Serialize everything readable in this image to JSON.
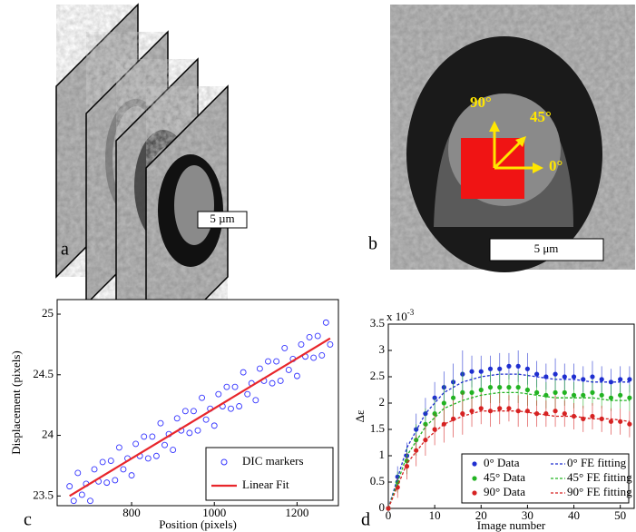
{
  "panels": {
    "a": {
      "label": "a",
      "scale_bar": "5 µm"
    },
    "b": {
      "label": "b",
      "scale_bar": "5 μm",
      "directions": [
        "90°",
        "45°",
        "0°"
      ]
    }
  },
  "chart_data": [
    {
      "type": "scatter",
      "panel_label": "c",
      "x_label": "Position (pixels)",
      "y_label": "Displacement (pixels)",
      "xlim": [
        620,
        1300
      ],
      "xticks": [
        800,
        1000,
        1200
      ],
      "ylim": [
        23.42,
        25.12
      ],
      "yticks": [
        23.5,
        24,
        24.5,
        25
      ],
      "legend": "lower right",
      "series": [
        {
          "name": "DIC markers",
          "color": "#3333ff",
          "mode": "markers",
          "x": [
            650,
            660,
            670,
            680,
            690,
            700,
            710,
            720,
            730,
            740,
            750,
            760,
            770,
            780,
            790,
            800,
            810,
            820,
            830,
            840,
            850,
            860,
            870,
            880,
            890,
            900,
            910,
            920,
            930,
            940,
            950,
            960,
            970,
            980,
            990,
            1000,
            1010,
            1020,
            1030,
            1040,
            1050,
            1060,
            1070,
            1080,
            1090,
            1100,
            1110,
            1120,
            1130,
            1140,
            1150,
            1160,
            1170,
            1180,
            1190,
            1200,
            1210,
            1220,
            1230,
            1240,
            1250,
            1260,
            1270,
            1280
          ],
          "values": [
            23.58,
            23.46,
            23.69,
            23.51,
            23.6,
            23.46,
            23.72,
            23.62,
            23.78,
            23.61,
            23.79,
            23.63,
            23.9,
            23.72,
            23.81,
            23.67,
            23.93,
            23.83,
            23.99,
            23.81,
            23.99,
            23.83,
            24.1,
            23.92,
            24.01,
            23.88,
            24.14,
            24.04,
            24.2,
            24.02,
            24.2,
            24.04,
            24.31,
            24.13,
            24.22,
            24.08,
            24.34,
            24.24,
            24.4,
            24.22,
            24.4,
            24.24,
            24.52,
            24.34,
            24.43,
            24.29,
            24.55,
            24.45,
            24.61,
            24.43,
            24.61,
            24.45,
            24.72,
            24.54,
            24.63,
            24.49,
            24.75,
            24.65,
            24.81,
            24.64,
            24.82,
            24.66,
            24.93,
            24.75
          ]
        },
        {
          "name": "Linear Fit",
          "color": "#e8262b",
          "mode": "line",
          "x": [
            650,
            1280
          ],
          "values": [
            23.5,
            24.8
          ]
        }
      ]
    },
    {
      "type": "line",
      "panel_label": "d",
      "x_label": "Image number",
      "y_label": "Δε",
      "y_multiplier": {
        "base": "x 10",
        "exponent": "-3"
      },
      "xlim": [
        0,
        53
      ],
      "xticks": [
        0,
        10,
        20,
        30,
        40,
        50
      ],
      "ylim": [
        0,
        3.5
      ],
      "yticks": [
        0,
        0.5,
        1,
        1.5,
        2,
        2.5,
        3,
        3.5
      ],
      "legend": "lower right",
      "series": [
        {
          "name": "0° Data",
          "color": "#1f2fd0",
          "mode": "markers",
          "x": [
            0,
            2,
            4,
            6,
            8,
            10,
            12,
            14,
            16,
            18,
            20,
            22,
            24,
            26,
            28,
            30,
            32,
            34,
            36,
            38,
            40,
            42,
            44,
            46,
            48,
            50,
            52
          ],
          "values": [
            0,
            0.6,
            1.0,
            1.5,
            1.8,
            2.1,
            2.3,
            2.4,
            2.55,
            2.6,
            2.6,
            2.65,
            2.65,
            2.7,
            2.7,
            2.65,
            2.55,
            2.5,
            2.55,
            2.5,
            2.5,
            2.45,
            2.5,
            2.45,
            2.4,
            2.45,
            2.45
          ],
          "errors": [
            0.05,
            0.2,
            0.25,
            0.3,
            0.3,
            0.3,
            0.3,
            0.35,
            0.45,
            0.3,
            0.3,
            0.25,
            0.3,
            0.25,
            0.3,
            0.3,
            0.25,
            0.25,
            0.3,
            0.25,
            0.25,
            0.25,
            0.3,
            0.25,
            0.25,
            0.25,
            0.25
          ]
        },
        {
          "name": "45° Data",
          "color": "#22b322",
          "mode": "markers",
          "x": [
            0,
            2,
            4,
            6,
            8,
            10,
            12,
            14,
            16,
            18,
            20,
            22,
            24,
            26,
            28,
            30,
            32,
            34,
            36,
            38,
            40,
            42,
            44,
            46,
            48,
            50,
            52
          ],
          "values": [
            0,
            0.5,
            0.9,
            1.3,
            1.6,
            1.8,
            2.0,
            2.1,
            2.2,
            2.2,
            2.25,
            2.3,
            2.3,
            2.3,
            2.3,
            2.25,
            2.2,
            2.15,
            2.2,
            2.2,
            2.15,
            2.15,
            2.2,
            2.15,
            2.1,
            2.15,
            2.1
          ],
          "errors": [
            0.05,
            0.2,
            0.25,
            0.3,
            0.3,
            0.3,
            0.35,
            0.35,
            0.4,
            0.3,
            0.3,
            0.3,
            0.3,
            0.25,
            0.3,
            0.3,
            0.25,
            0.25,
            0.3,
            0.25,
            0.25,
            0.25,
            0.25,
            0.25,
            0.25,
            0.25,
            0.25
          ]
        },
        {
          "name": "90° Data",
          "color": "#d62222",
          "mode": "markers",
          "x": [
            0,
            2,
            4,
            6,
            8,
            10,
            12,
            14,
            16,
            18,
            20,
            22,
            24,
            26,
            28,
            30,
            32,
            34,
            36,
            38,
            40,
            42,
            44,
            46,
            48,
            50,
            52
          ],
          "values": [
            0,
            0.4,
            0.8,
            1.1,
            1.3,
            1.5,
            1.6,
            1.7,
            1.8,
            1.85,
            1.9,
            1.85,
            1.9,
            1.9,
            1.85,
            1.85,
            1.8,
            1.8,
            1.85,
            1.8,
            1.75,
            1.7,
            1.75,
            1.7,
            1.65,
            1.65,
            1.6
          ],
          "errors": [
            0.05,
            0.2,
            0.25,
            0.3,
            0.3,
            0.3,
            0.35,
            0.35,
            0.4,
            0.3,
            0.3,
            0.3,
            0.3,
            0.25,
            0.3,
            0.3,
            0.25,
            0.25,
            0.3,
            0.25,
            0.25,
            0.25,
            0.25,
            0.25,
            0.25,
            0.25,
            0.25
          ]
        },
        {
          "name": "0° FE fitting",
          "color": "#1f2fd0",
          "mode": "dashed",
          "x": [
            0,
            4,
            8,
            12,
            16,
            20,
            24,
            28,
            32,
            36,
            40,
            44,
            48,
            52
          ],
          "values": [
            0,
            1.15,
            1.8,
            2.2,
            2.4,
            2.5,
            2.55,
            2.55,
            2.5,
            2.45,
            2.45,
            2.4,
            2.4,
            2.4
          ]
        },
        {
          "name": "45° FE fitting",
          "color": "#22b322",
          "mode": "dashed",
          "x": [
            0,
            4,
            8,
            12,
            16,
            20,
            24,
            28,
            32,
            36,
            40,
            44,
            48,
            52
          ],
          "values": [
            0,
            1.0,
            1.55,
            1.9,
            2.05,
            2.15,
            2.2,
            2.2,
            2.15,
            2.1,
            2.1,
            2.1,
            2.05,
            2.05
          ]
        },
        {
          "name": "90° FE fitting",
          "color": "#d62222",
          "mode": "dashed",
          "x": [
            0,
            4,
            8,
            12,
            16,
            20,
            24,
            28,
            32,
            36,
            40,
            44,
            48,
            52
          ],
          "values": [
            0,
            0.85,
            1.3,
            1.6,
            1.75,
            1.85,
            1.85,
            1.85,
            1.8,
            1.75,
            1.75,
            1.7,
            1.7,
            1.65
          ]
        }
      ]
    }
  ]
}
